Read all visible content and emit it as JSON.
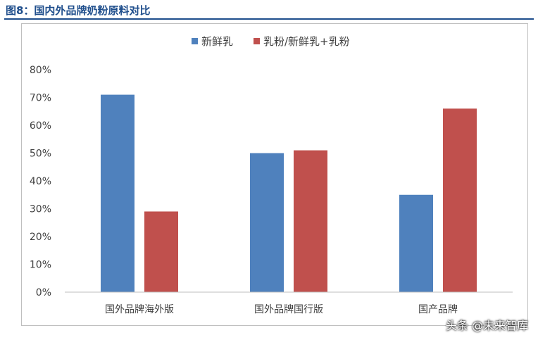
{
  "figure_title": "图8：国内外品牌奶粉原料对比",
  "watermark": "头条 @未来智库",
  "colors": {
    "series1": "#4f81bd",
    "series2": "#c0504d",
    "title": "#1f4e8c"
  },
  "chart_data": {
    "type": "bar",
    "categories": [
      "国外品牌海外版",
      "国外品牌国行版",
      "国产品牌"
    ],
    "series": [
      {
        "name": "新鲜乳",
        "values": [
          0.71,
          0.5,
          0.35
        ]
      },
      {
        "name": "乳粉/新鲜乳+乳粉",
        "values": [
          0.29,
          0.51,
          0.66
        ]
      }
    ],
    "ylim": [
      0,
      0.8
    ],
    "yticks": [
      0,
      0.1,
      0.2,
      0.3,
      0.4,
      0.5,
      0.6,
      0.7,
      0.8
    ],
    "ytick_labels": [
      "0%",
      "10%",
      "20%",
      "30%",
      "40%",
      "50%",
      "60%",
      "70%",
      "80%"
    ],
    "legend_position": "top-center",
    "grid": false
  }
}
